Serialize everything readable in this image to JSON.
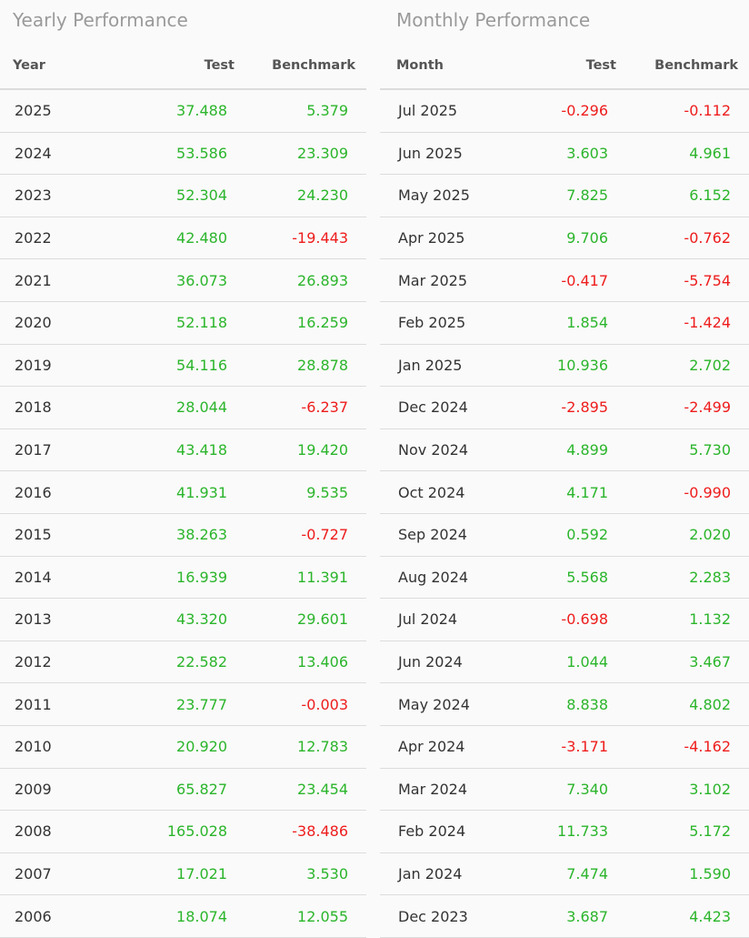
{
  "colors": {
    "positive": "#2bb52b",
    "negative": "#ee1c1c"
  },
  "yearly": {
    "title": "Yearly Performance",
    "headers": [
      "Year",
      "Test",
      "Benchmark"
    ],
    "rows": [
      [
        "2025",
        "37.488",
        "5.379"
      ],
      [
        "2024",
        "53.586",
        "23.309"
      ],
      [
        "2023",
        "52.304",
        "24.230"
      ],
      [
        "2022",
        "42.480",
        "-19.443"
      ],
      [
        "2021",
        "36.073",
        "26.893"
      ],
      [
        "2020",
        "52.118",
        "16.259"
      ],
      [
        "2019",
        "54.116",
        "28.878"
      ],
      [
        "2018",
        "28.044",
        "-6.237"
      ],
      [
        "2017",
        "43.418",
        "19.420"
      ],
      [
        "2016",
        "41.931",
        "9.535"
      ],
      [
        "2015",
        "38.263",
        "-0.727"
      ],
      [
        "2014",
        "16.939",
        "11.391"
      ],
      [
        "2013",
        "43.320",
        "29.601"
      ],
      [
        "2012",
        "22.582",
        "13.406"
      ],
      [
        "2011",
        "23.777",
        "-0.003"
      ],
      [
        "2010",
        "20.920",
        "12.783"
      ],
      [
        "2009",
        "65.827",
        "23.454"
      ],
      [
        "2008",
        "165.028",
        "-38.486"
      ],
      [
        "2007",
        "17.021",
        "3.530"
      ],
      [
        "2006",
        "18.074",
        "12.055"
      ]
    ]
  },
  "monthly": {
    "title": "Monthly Performance",
    "headers": [
      "Month",
      "Test",
      "Benchmark"
    ],
    "rows": [
      [
        "Jul 2025",
        "-0.296",
        "-0.112"
      ],
      [
        "Jun 2025",
        "3.603",
        "4.961"
      ],
      [
        "May 2025",
        "7.825",
        "6.152"
      ],
      [
        "Apr 2025",
        "9.706",
        "-0.762"
      ],
      [
        "Mar 2025",
        "-0.417",
        "-5.754"
      ],
      [
        "Feb 2025",
        "1.854",
        "-1.424"
      ],
      [
        "Jan 2025",
        "10.936",
        "2.702"
      ],
      [
        "Dec 2024",
        "-2.895",
        "-2.499"
      ],
      [
        "Nov 2024",
        "4.899",
        "5.730"
      ],
      [
        "Oct 2024",
        "4.171",
        "-0.990"
      ],
      [
        "Sep 2024",
        "0.592",
        "2.020"
      ],
      [
        "Aug 2024",
        "5.568",
        "2.283"
      ],
      [
        "Jul 2024",
        "-0.698",
        "1.132"
      ],
      [
        "Jun 2024",
        "1.044",
        "3.467"
      ],
      [
        "May 2024",
        "8.838",
        "4.802"
      ],
      [
        "Apr 2024",
        "-3.171",
        "-4.162"
      ],
      [
        "Mar 2024",
        "7.340",
        "3.102"
      ],
      [
        "Feb 2024",
        "11.733",
        "5.172"
      ],
      [
        "Jan 2024",
        "7.474",
        "1.590"
      ],
      [
        "Dec 2023",
        "3.687",
        "4.423"
      ]
    ]
  }
}
